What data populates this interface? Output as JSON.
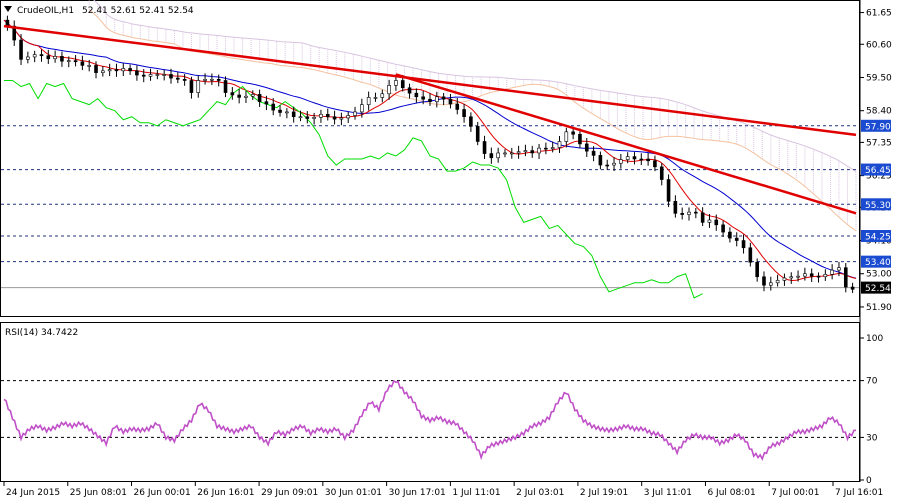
{
  "header": {
    "symbol": "CrudeOIL,H1",
    "ohlc": "52.41 52.61 52.41 52.54"
  },
  "rsi_header": "RSI(14) 34.7422",
  "colors": {
    "up_candle": "#000000",
    "down_candle": "#000000",
    "tenkan": "#e00000",
    "kijun": "#0000d0",
    "chikou": "#00dd00",
    "cloud_a": "#f4c2a0",
    "cloud_b": "#d8c4e0",
    "trendline": "#e00000",
    "rsi": "#c050c8",
    "level_label_bg": "#1a4bd0",
    "current_label_bg": "#000000"
  },
  "chart_data": [
    {
      "type": "candlestick",
      "title": "CrudeOIL,H1",
      "y_ticks": [
        "61.65",
        "60.60",
        "59.50",
        "58.40",
        "57.35",
        "56.25",
        "55.20",
        "54.10",
        "53.00",
        "51.90"
      ],
      "ylim": [
        51.6,
        62.0
      ],
      "x_ticks": [
        "24 Jun 2015",
        "25 Jun 08:01",
        "26 Jun 00:01",
        "26 Jun 16:01",
        "29 Jun 09:01",
        "30 Jun 01:01",
        "30 Jun 17:01",
        "1 Jul 11:01",
        "2 Jul 03:01",
        "2 Jul 19:01",
        "3 Jul 11:01",
        "6 Jul 08:01",
        "7 Jul 00:01",
        "7 Jul 16:01"
      ],
      "levels": [
        {
          "label": "57.90",
          "value": 57.9
        },
        {
          "label": "56.45",
          "value": 56.45
        },
        {
          "label": "55.30",
          "value": 55.3
        },
        {
          "label": "54.25",
          "value": 54.25
        },
        {
          "label": "53.40",
          "value": 53.4
        }
      ],
      "current_price": {
        "label": "52.54",
        "value": 52.54
      },
      "trendlines": [
        {
          "from": [
            0,
            61.2
          ],
          "to": [
            100,
            57.6
          ]
        },
        {
          "from": [
            46,
            59.6
          ],
          "to": [
            100,
            55.0
          ]
        }
      ],
      "price_path": [
        [
          0,
          61.4
        ],
        [
          1,
          60.9
        ],
        [
          2,
          60.1
        ],
        [
          3,
          60.2
        ],
        [
          4,
          60.3
        ],
        [
          5,
          60.1
        ],
        [
          6,
          60.2
        ],
        [
          7,
          60.0
        ],
        [
          8,
          60.1
        ],
        [
          9,
          59.9
        ],
        [
          10,
          59.9
        ],
        [
          11,
          59.6
        ],
        [
          12,
          59.8
        ],
        [
          13,
          59.7
        ],
        [
          14,
          59.8
        ],
        [
          15,
          59.7
        ],
        [
          16,
          59.5
        ],
        [
          17,
          59.6
        ],
        [
          18,
          59.6
        ],
        [
          19,
          59.6
        ],
        [
          20,
          59.4
        ],
        [
          21,
          59.5
        ],
        [
          22,
          59.0
        ],
        [
          23,
          59.5
        ],
        [
          24,
          59.4
        ],
        [
          25,
          59.5
        ],
        [
          26,
          59.0
        ],
        [
          27,
          58.9
        ],
        [
          28,
          58.8
        ],
        [
          29,
          59.0
        ],
        [
          30,
          58.7
        ],
        [
          31,
          58.6
        ],
        [
          32,
          58.3
        ],
        [
          33,
          58.4
        ],
        [
          34,
          58.2
        ],
        [
          35,
          58.2
        ],
        [
          36,
          58.1
        ],
        [
          37,
          58.3
        ],
        [
          38,
          58.2
        ],
        [
          39,
          58.1
        ],
        [
          40,
          58.2
        ],
        [
          41,
          58.3
        ],
        [
          42,
          58.6
        ],
        [
          43,
          58.9
        ],
        [
          44,
          58.8
        ],
        [
          45,
          59.2
        ],
        [
          46,
          59.4
        ],
        [
          47,
          59.1
        ],
        [
          48,
          58.9
        ],
        [
          49,
          58.8
        ],
        [
          50,
          58.7
        ],
        [
          51,
          58.9
        ],
        [
          52,
          58.7
        ],
        [
          53,
          58.5
        ],
        [
          54,
          58.2
        ],
        [
          55,
          57.8
        ],
        [
          56,
          57.1
        ],
        [
          57,
          56.8
        ],
        [
          58,
          57.0
        ],
        [
          59,
          57.0
        ],
        [
          60,
          57.0
        ],
        [
          61,
          57.1
        ],
        [
          62,
          57.0
        ],
        [
          63,
          57.2
        ],
        [
          64,
          57.1
        ],
        [
          65,
          57.3
        ],
        [
          66,
          57.7
        ],
        [
          67,
          57.6
        ],
        [
          68,
          57.1
        ],
        [
          69,
          57.0
        ],
        [
          70,
          56.6
        ],
        [
          71,
          56.6
        ],
        [
          72,
          56.7
        ],
        [
          73,
          56.9
        ],
        [
          74,
          56.8
        ],
        [
          75,
          56.8
        ],
        [
          76,
          56.7
        ],
        [
          77,
          56.3
        ],
        [
          78,
          55.4
        ],
        [
          79,
          54.9
        ],
        [
          80,
          55.0
        ],
        [
          81,
          55.1
        ],
        [
          82,
          54.7
        ],
        [
          83,
          54.8
        ],
        [
          84,
          54.5
        ],
        [
          85,
          54.2
        ],
        [
          86,
          54.1
        ],
        [
          87,
          53.8
        ],
        [
          88,
          53.1
        ],
        [
          89,
          52.6
        ],
        [
          90,
          52.7
        ],
        [
          91,
          52.8
        ],
        [
          92,
          52.9
        ],
        [
          93,
          52.9
        ],
        [
          94,
          53.0
        ],
        [
          95,
          52.9
        ],
        [
          96,
          52.9
        ],
        [
          97,
          53.1
        ],
        [
          98,
          53.2
        ],
        [
          99,
          52.4
        ],
        [
          100,
          52.54
        ]
      ]
    },
    {
      "type": "line",
      "title": "RSI(14) 34.7422",
      "y_ticks": [
        "100",
        "70",
        "30",
        "0"
      ],
      "ylim": [
        0,
        100
      ],
      "levels": [
        70,
        30
      ],
      "x_ticks": [
        "24 Jun 2015",
        "25 Jun 08:01",
        "26 Jun 00:01",
        "26 Jun 16:01",
        "29 Jun 09:01",
        "30 Jun 01:01",
        "30 Jun 17:01",
        "1 Jul 11:01",
        "2 Jul 03:01",
        "2 Jul 19:01",
        "3 Jul 11:01",
        "6 Jul 08:01",
        "7 Jul 00:01",
        "7 Jul 16:01"
      ],
      "series": [
        {
          "values": [
            [
              0,
              58
            ],
            [
              1,
              44
            ],
            [
              2,
              30
            ],
            [
              3,
              36
            ],
            [
              4,
              38
            ],
            [
              5,
              35
            ],
            [
              6,
              37
            ],
            [
              7,
              40
            ],
            [
              8,
              38
            ],
            [
              9,
              40
            ],
            [
              10,
              36
            ],
            [
              11,
              31
            ],
            [
              12,
              26
            ],
            [
              13,
              38
            ],
            [
              14,
              34
            ],
            [
              15,
              36
            ],
            [
              16,
              35
            ],
            [
              17,
              36
            ],
            [
              18,
              40
            ],
            [
              19,
              30
            ],
            [
              20,
              28
            ],
            [
              21,
              36
            ],
            [
              22,
              42
            ],
            [
              23,
              54
            ],
            [
              24,
              49
            ],
            [
              25,
              38
            ],
            [
              26,
              36
            ],
            [
              27,
              34
            ],
            [
              28,
              36
            ],
            [
              29,
              38
            ],
            [
              30,
              30
            ],
            [
              31,
              26
            ],
            [
              32,
              34
            ],
            [
              33,
              32
            ],
            [
              34,
              36
            ],
            [
              35,
              38
            ],
            [
              36,
              33
            ],
            [
              37,
              36
            ],
            [
              38,
              34
            ],
            [
              39,
              36
            ],
            [
              40,
              30
            ],
            [
              41,
              35
            ],
            [
              42,
              46
            ],
            [
              43,
              55
            ],
            [
              44,
              50
            ],
            [
              45,
              64
            ],
            [
              46,
              70
            ],
            [
              47,
              62
            ],
            [
              48,
              56
            ],
            [
              49,
              45
            ],
            [
              50,
              42
            ],
            [
              51,
              44
            ],
            [
              52,
              41
            ],
            [
              53,
              40
            ],
            [
              54,
              34
            ],
            [
              55,
              28
            ],
            [
              56,
              17
            ],
            [
              57,
              24
            ],
            [
              58,
              26
            ],
            [
              59,
              28
            ],
            [
              60,
              30
            ],
            [
              61,
              33
            ],
            [
              62,
              38
            ],
            [
              63,
              40
            ],
            [
              64,
              44
            ],
            [
              65,
              55
            ],
            [
              66,
              62
            ],
            [
              67,
              50
            ],
            [
              68,
              42
            ],
            [
              69,
              38
            ],
            [
              70,
              36
            ],
            [
              71,
              35
            ],
            [
              72,
              36
            ],
            [
              73,
              38
            ],
            [
              74,
              36
            ],
            [
              75,
              36
            ],
            [
              76,
              33
            ],
            [
              77,
              32
            ],
            [
              78,
              26
            ],
            [
              79,
              20
            ],
            [
              80,
              28
            ],
            [
              81,
              32
            ],
            [
              82,
              30
            ],
            [
              83,
              30
            ],
            [
              84,
              26
            ],
            [
              85,
              28
            ],
            [
              86,
              32
            ],
            [
              87,
              28
            ],
            [
              88,
              18
            ],
            [
              89,
              16
            ],
            [
              90,
              24
            ],
            [
              91,
              26
            ],
            [
              92,
              30
            ],
            [
              93,
              34
            ],
            [
              94,
              34
            ],
            [
              95,
              36
            ],
            [
              96,
              38
            ],
            [
              97,
              44
            ],
            [
              98,
              40
            ],
            [
              99,
              30
            ],
            [
              100,
              35
            ]
          ]
        }
      ]
    }
  ]
}
